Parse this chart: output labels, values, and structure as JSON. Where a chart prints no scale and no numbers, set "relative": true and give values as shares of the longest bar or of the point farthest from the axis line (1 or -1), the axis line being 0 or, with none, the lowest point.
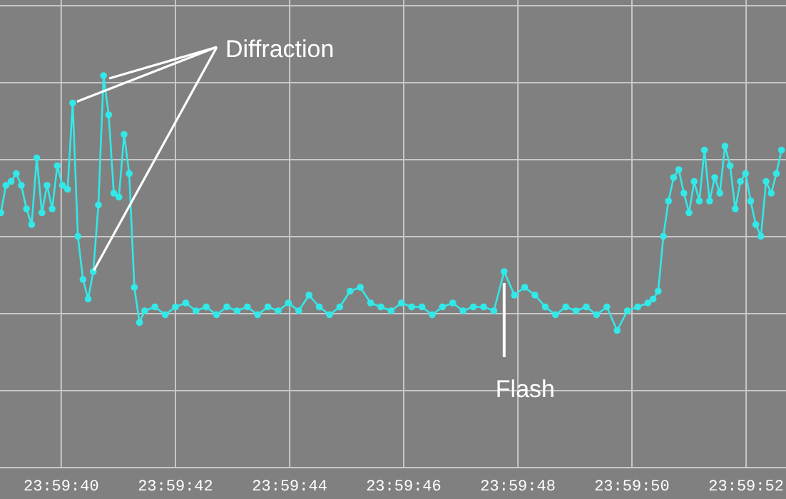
{
  "chart_data": {
    "type": "line",
    "relative": true,
    "grid": true,
    "marker": "circle",
    "line_style": "solid",
    "xlim": [
      23.994146,
      23.997972
    ],
    "xticks": [
      {
        "value": 23.994444,
        "label": "23:59:40"
      },
      {
        "value": 23.995,
        "label": "23:59:42"
      },
      {
        "value": 23.995556,
        "label": "23:59:44"
      },
      {
        "value": 23.996111,
        "label": "23:59:46"
      },
      {
        "value": 23.996667,
        "label": "23:59:48"
      },
      {
        "value": 23.997222,
        "label": "23:59:50"
      },
      {
        "value": 23.997778,
        "label": "23:59:52"
      }
    ],
    "annotations": [
      {
        "text": "Diffraction",
        "x": 23.99465,
        "y": 1
      },
      {
        "text": "Flash",
        "x": 23.9966,
        "y": 0.5
      }
    ],
    "series": [
      {
        "color": "#33e8e8",
        "x": [
          23.99415,
          23.994175,
          23.9942,
          23.994225,
          23.99425,
          23.994275,
          23.9943,
          23.994325,
          23.99435,
          23.994375,
          23.9944,
          23.994425,
          23.99445,
          23.994475,
          23.9945,
          23.994525,
          23.99455,
          23.994575,
          23.9946,
          23.994625,
          23.99465,
          23.994675,
          23.9947,
          23.994725,
          23.99475,
          23.994775,
          23.9948,
          23.994825,
          23.99485,
          23.9949,
          23.99495,
          23.995,
          23.99505,
          23.9951,
          23.99515,
          23.9952,
          23.99525,
          23.9953,
          23.99535,
          23.9954,
          23.99545,
          23.9955,
          23.99555,
          23.9956,
          23.99565,
          23.9957,
          23.99575,
          23.9958,
          23.99585,
          23.9959,
          23.99595,
          23.996,
          23.99605,
          23.9961,
          23.99615,
          23.9962,
          23.99625,
          23.9963,
          23.99635,
          23.9964,
          23.99645,
          23.9965,
          23.99655,
          23.9966,
          23.99665,
          23.9967,
          23.99675,
          23.9968,
          23.99685,
          23.9969,
          23.99695,
          23.997,
          23.99705,
          23.9971,
          23.99715,
          23.9972,
          23.99725,
          23.9973,
          23.997325,
          23.99735,
          23.997375,
          23.9974,
          23.997425,
          23.99745,
          23.997475,
          23.9975,
          23.997525,
          23.99755,
          23.997575,
          23.9976,
          23.997625,
          23.99765,
          23.997675,
          23.9977,
          23.997725,
          23.99775,
          23.997775,
          23.9978,
          23.997825,
          23.99785,
          23.997875,
          23.9979,
          23.997925,
          23.99795
        ],
        "values": [
          0.65,
          0.72,
          0.73,
          0.75,
          0.72,
          0.66,
          0.62,
          0.79,
          0.65,
          0.72,
          0.66,
          0.77,
          0.72,
          0.71,
          0.93,
          0.59,
          0.48,
          0.43,
          0.5,
          0.67,
          1,
          0.9,
          0.7,
          0.69,
          0.85,
          0.75,
          0.46,
          0.37,
          0.4,
          0.41,
          0.39,
          0.41,
          0.42,
          0.4,
          0.41,
          0.39,
          0.41,
          0.4,
          0.41,
          0.39,
          0.41,
          0.4,
          0.42,
          0.4,
          0.44,
          0.41,
          0.39,
          0.41,
          0.45,
          0.46,
          0.42,
          0.41,
          0.4,
          0.42,
          0.41,
          0.41,
          0.39,
          0.41,
          0.42,
          0.4,
          0.41,
          0.41,
          0.4,
          0.5,
          0.44,
          0.46,
          0.44,
          0.41,
          0.39,
          0.41,
          0.4,
          0.41,
          0.39,
          0.41,
          0.35,
          0.4,
          0.41,
          0.42,
          0.43,
          0.45,
          0.59,
          0.68,
          0.74,
          0.76,
          0.7,
          0.65,
          0.73,
          0.68,
          0.81,
          0.68,
          0.74,
          0.7,
          0.82,
          0.77,
          0.66,
          0.73,
          0.75,
          0.68,
          0.62,
          0.59,
          0.73,
          0.7,
          0.75,
          0.81
        ]
      }
    ]
  }
}
